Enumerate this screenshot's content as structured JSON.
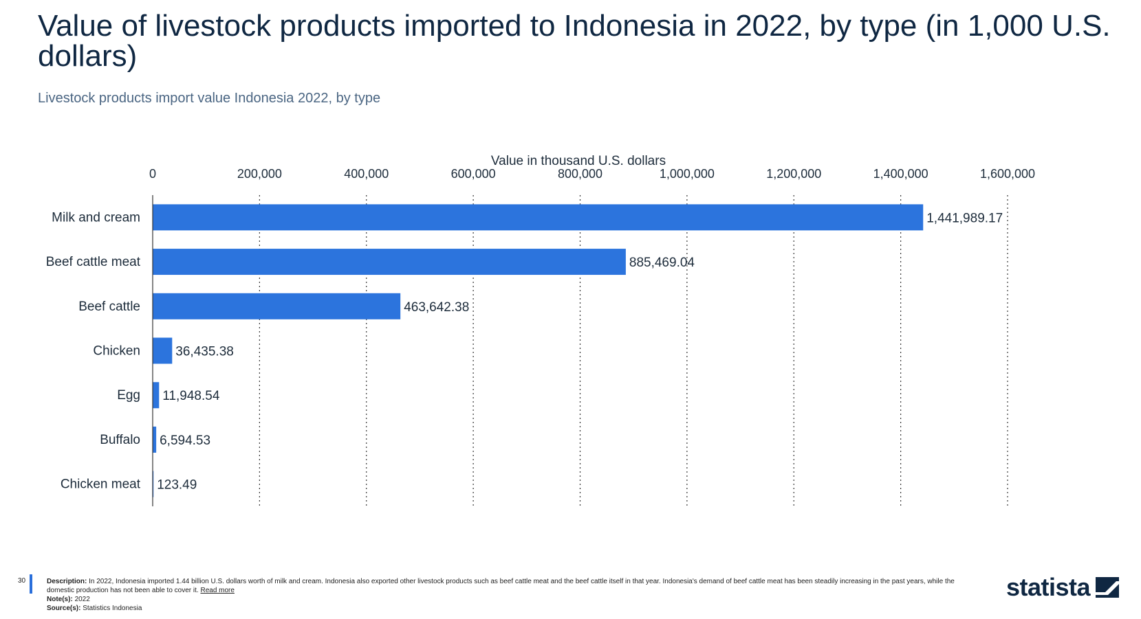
{
  "header": {
    "title": "Value of livestock products imported to Indonesia in 2022, by type (in 1,000 U.S. dollars)",
    "subtitle": "Livestock products import value Indonesia 2022, by type"
  },
  "chart_data": {
    "type": "bar",
    "orientation": "horizontal",
    "xlabel": "Value in thousand U.S. dollars",
    "xlim": [
      0,
      1600000
    ],
    "ticks": [
      0,
      200000,
      400000,
      600000,
      800000,
      1000000,
      1200000,
      1400000,
      1600000
    ],
    "tick_labels": [
      "0",
      "200,000",
      "400,000",
      "600,000",
      "800,000",
      "1,000,000",
      "1,200,000",
      "1,400,000",
      "1,600,000"
    ],
    "categories": [
      "Milk and cream",
      "Beef cattle meat",
      "Beef cattle",
      "Chicken",
      "Egg",
      "Buffalo",
      "Chicken meat"
    ],
    "values": [
      1441989.17,
      885469.04,
      463642.38,
      36435.38,
      11948.54,
      6594.53,
      123.49
    ],
    "value_labels": [
      "1,441,989.17",
      "885,469.04",
      "463,642.38",
      "36,435.38",
      "11,948.54",
      "6,594.53",
      "123.49"
    ],
    "bar_color": "#2c74dd",
    "grid": true,
    "grid_style": "dotted"
  },
  "footer": {
    "page_number": "30",
    "description_label": "Description:",
    "description_text": "In 2022, Indonesia imported 1.44 billion U.S. dollars worth of milk and cream. Indonesia also exported other livestock products such as beef cattle meat and the beef cattle itself in that year. Indonesia's demand of beef cattle meat has been steadily increasing in the past years, while the domestic production has not been able to cover it.",
    "read_more": "Read more",
    "note_label": "Note(s):",
    "note_text": "2022",
    "source_label": "Source(s):",
    "source_text": "Statistics Indonesia",
    "brand": "statista"
  }
}
